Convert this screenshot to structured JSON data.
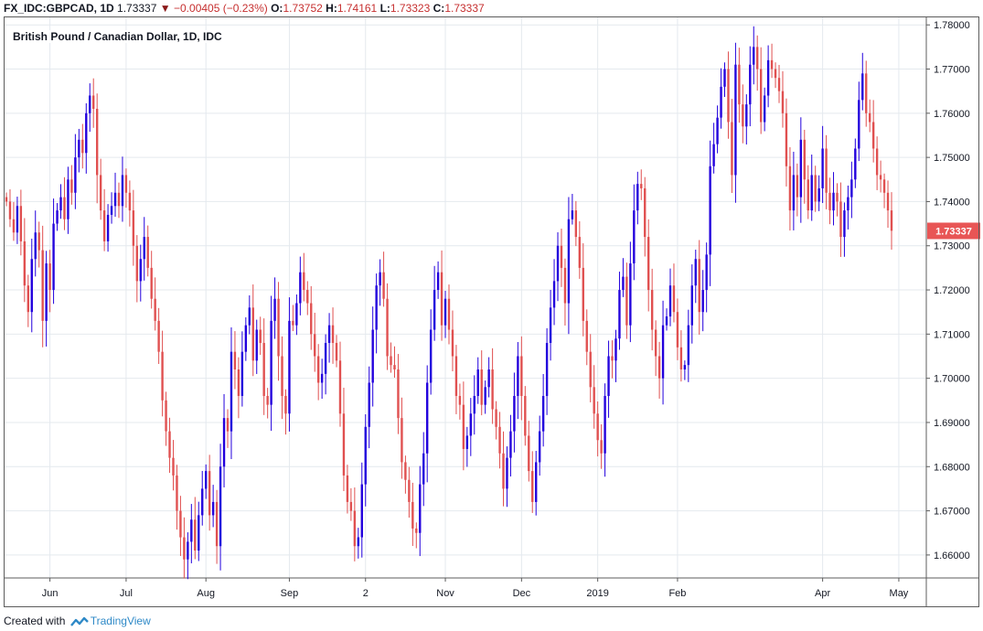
{
  "header": {
    "symbol": "FX_IDC:GBPCAD, 1D",
    "last": "1.73337",
    "change": "−0.00405 (−0.23%)",
    "open_label": "O:",
    "open": "1.73752",
    "high_label": "H:",
    "high": "1.74161",
    "low_label": "L:",
    "low": "1.73323",
    "close_label": "C:",
    "close": "1.73337",
    "direction_icon": "down-triangle-icon"
  },
  "footer": {
    "created_with": "Created with",
    "brand": "TradingView",
    "logo_icon": "tradingview-logo-icon"
  },
  "colors": {
    "up": "#2200dd",
    "down": "#e05050",
    "grid": "#e4e9ee",
    "last_price_bg": "#e85555",
    "axis_text": "#131722"
  },
  "chart_data": {
    "type": "candlestick",
    "title": "British Pound / Canadian Dollar, 1D, IDC",
    "xlabel": "",
    "ylabel": "",
    "ylim": [
      1.6548,
      1.7817
    ],
    "y_ticks": [
      "1.78000",
      "1.77000",
      "1.76000",
      "1.75000",
      "1.74000",
      "1.73000",
      "1.72000",
      "1.71000",
      "1.70000",
      "1.69000",
      "1.68000",
      "1.67000",
      "1.66000"
    ],
    "x_ticks": [
      {
        "label": "Jun",
        "index": 12
      },
      {
        "label": "Jul",
        "index": 33
      },
      {
        "label": "Aug",
        "index": 55
      },
      {
        "label": "Sep",
        "index": 78
      },
      {
        "label": "2",
        "index": 99
      },
      {
        "label": "Nov",
        "index": 121
      },
      {
        "label": "Dec",
        "index": 142
      },
      {
        "label": "2019",
        "index": 163
      },
      {
        "label": "Feb",
        "index": 185
      },
      {
        "label": "Apr",
        "index": 225
      },
      {
        "label": "May",
        "index": 246
      }
    ],
    "last_price": "1.73337",
    "grid": true,
    "close": [
      1.74,
      1.736,
      1.733,
      1.739,
      1.731,
      1.721,
      1.715,
      1.727,
      1.733,
      1.729,
      1.713,
      1.726,
      1.72,
      1.735,
      1.738,
      1.741,
      1.736,
      1.745,
      1.742,
      1.75,
      1.754,
      1.751,
      1.76,
      1.764,
      1.761,
      1.746,
      1.738,
      1.731,
      1.737,
      1.739,
      1.742,
      1.739,
      1.746,
      1.742,
      1.738,
      1.73,
      1.722,
      1.727,
      1.732,
      1.725,
      1.718,
      1.713,
      1.706,
      1.695,
      1.688,
      1.682,
      1.678,
      1.67,
      1.664,
      1.659,
      1.663,
      1.668,
      1.661,
      1.669,
      1.675,
      1.679,
      1.669,
      1.672,
      1.662,
      1.68,
      1.691,
      1.688,
      1.706,
      1.702,
      1.696,
      1.706,
      1.712,
      1.716,
      1.704,
      1.711,
      1.708,
      1.696,
      1.694,
      1.713,
      1.718,
      1.705,
      1.696,
      1.692,
      1.713,
      1.712,
      1.717,
      1.724,
      1.72,
      1.717,
      1.71,
      1.705,
      1.699,
      1.701,
      1.708,
      1.712,
      1.708,
      1.704,
      1.692,
      1.678,
      1.672,
      1.67,
      1.662,
      1.664,
      1.676,
      1.689,
      1.699,
      1.711,
      1.721,
      1.724,
      1.718,
      1.705,
      1.703,
      1.702,
      1.691,
      1.681,
      1.677,
      1.672,
      1.666,
      1.665,
      1.676,
      1.683,
      1.699,
      1.711,
      1.72,
      1.724,
      1.712,
      1.718,
      1.711,
      1.705,
      1.696,
      1.694,
      1.684,
      1.687,
      1.692,
      1.696,
      1.702,
      1.694,
      1.698,
      1.702,
      1.693,
      1.689,
      1.683,
      1.675,
      1.682,
      1.688,
      1.696,
      1.705,
      1.696,
      1.687,
      1.679,
      1.672,
      1.681,
      1.688,
      1.696,
      1.708,
      1.716,
      1.722,
      1.73,
      1.725,
      1.717,
      1.736,
      1.738,
      1.732,
      1.725,
      1.713,
      1.706,
      1.698,
      1.692,
      1.686,
      1.683,
      1.696,
      1.705,
      1.704,
      1.709,
      1.72,
      1.723,
      1.712,
      1.726,
      1.738,
      1.744,
      1.743,
      1.732,
      1.72,
      1.711,
      1.705,
      1.7,
      1.712,
      1.714,
      1.721,
      1.715,
      1.707,
      1.702,
      1.703,
      1.712,
      1.721,
      1.727,
      1.715,
      1.72,
      1.728,
      1.748,
      1.753,
      1.759,
      1.766,
      1.77,
      1.758,
      1.746,
      1.771,
      1.762,
      1.757,
      1.762,
      1.771,
      1.775,
      1.77,
      1.758,
      1.764,
      1.772,
      1.77,
      1.768,
      1.765,
      1.76,
      1.748,
      1.738,
      1.746,
      1.741,
      1.754,
      1.745,
      1.738,
      1.746,
      1.74,
      1.743,
      1.752,
      1.742,
      1.738,
      1.742,
      1.74,
      1.732,
      1.738,
      1.741,
      1.745,
      1.752,
      1.763,
      1.769,
      1.76,
      1.758,
      1.752,
      1.746,
      1.745,
      1.742,
      1.738,
      1.7334
    ]
  }
}
